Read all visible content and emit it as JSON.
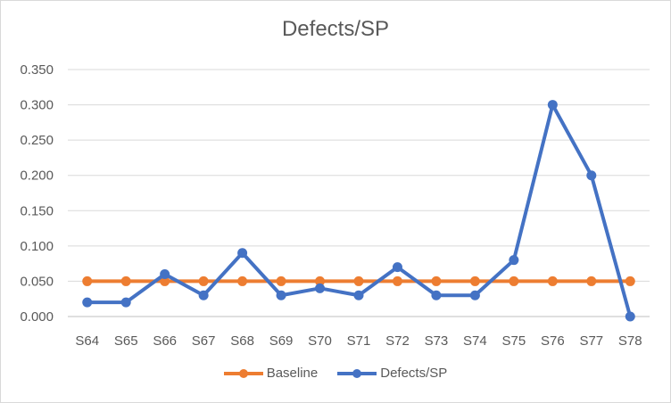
{
  "chart_data": {
    "type": "line",
    "title": "Defects/SP",
    "xlabel": "",
    "ylabel": "",
    "categories": [
      "S64",
      "S65",
      "S66",
      "S67",
      "S68",
      "S69",
      "S70",
      "S71",
      "S72",
      "S73",
      "S74",
      "S75",
      "S76",
      "S77",
      "S78"
    ],
    "ylim": [
      0,
      0.35
    ],
    "yticks": [
      "0.000",
      "0.050",
      "0.100",
      "0.150",
      "0.200",
      "0.250",
      "0.300",
      "0.350"
    ],
    "grid": true,
    "legend_position": "bottom",
    "series": [
      {
        "name": "Baseline",
        "color": "#ed7d31",
        "values": [
          0.05,
          0.05,
          0.05,
          0.05,
          0.05,
          0.05,
          0.05,
          0.05,
          0.05,
          0.05,
          0.05,
          0.05,
          0.05,
          0.05,
          0.05
        ]
      },
      {
        "name": "Defects/SP",
        "color": "#4472c4",
        "values": [
          0.02,
          0.02,
          0.06,
          0.03,
          0.09,
          0.03,
          0.04,
          0.03,
          0.07,
          0.03,
          0.03,
          0.08,
          0.3,
          0.2,
          0.0
        ]
      }
    ]
  }
}
